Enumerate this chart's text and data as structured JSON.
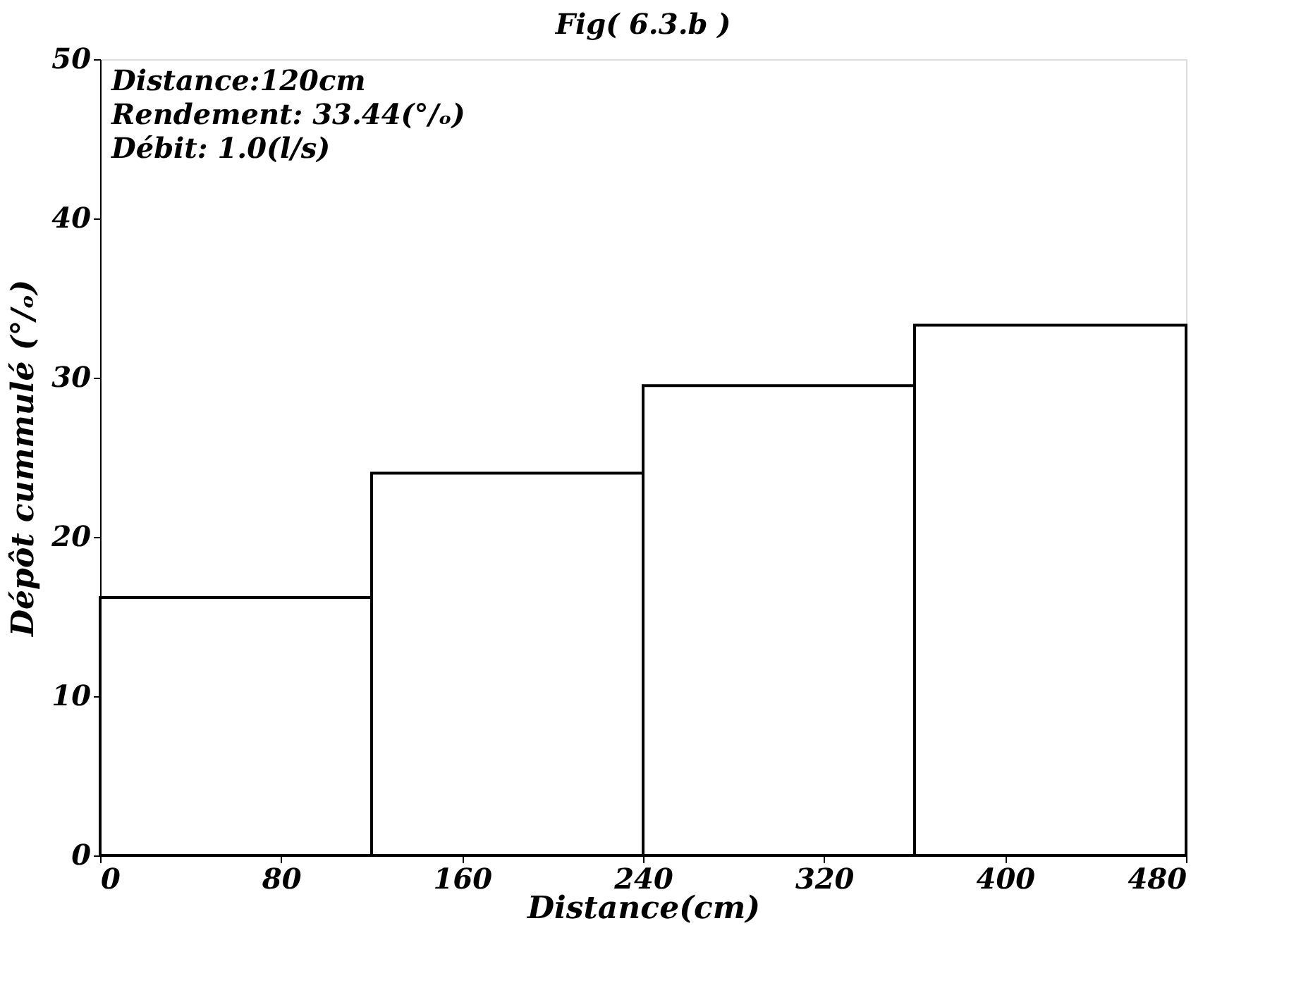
{
  "chart_data": {
    "type": "histogram",
    "title": "Fig( 6.3.b )",
    "xlabel": "Distance(cm)",
    "ylabel": "Dépôt cummulé (°/ₒ)",
    "bins": [
      0,
      120,
      240,
      360,
      480
    ],
    "values": [
      16.2,
      24.0,
      29.5,
      33.3
    ],
    "color": "#000000",
    "xlim": [
      0,
      480
    ],
    "xticks": [
      0,
      80,
      160,
      240,
      320,
      400,
      480
    ],
    "ylim": [
      0,
      50
    ],
    "yticks": [
      0,
      10,
      20,
      30,
      40,
      50
    ],
    "grid": false,
    "annotations": [
      "Distance:120cm",
      "Rendement: 33.44(°/ₒ)",
      "Débit: 1.0(l/s)"
    ]
  }
}
